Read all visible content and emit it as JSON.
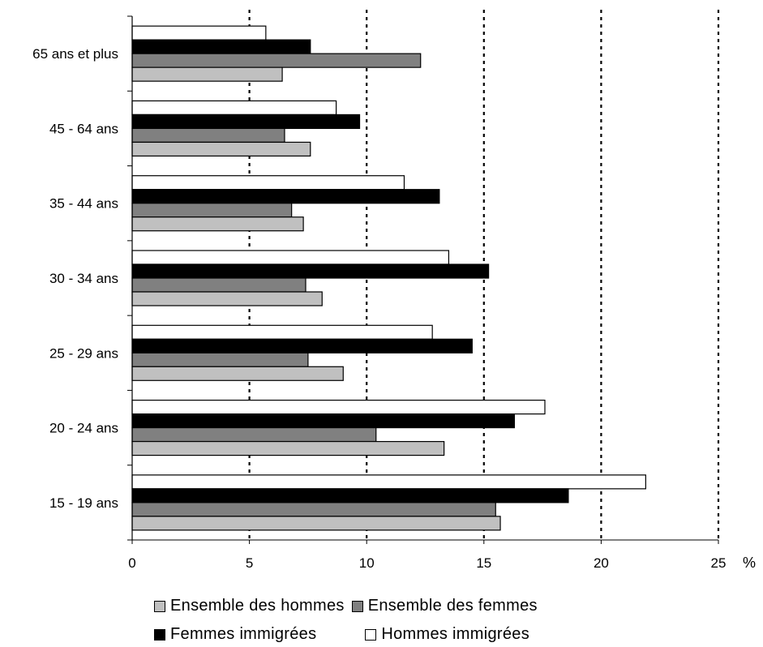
{
  "chart_data": {
    "type": "bar",
    "orientation": "horizontal",
    "categories": [
      "65 ans et plus",
      "45 - 64 ans",
      "35 - 44 ans",
      "30 - 34 ans",
      "25 - 29 ans",
      "20 - 24 ans",
      "15 - 19 ans"
    ],
    "series": [
      {
        "name": "Hommes immigrées",
        "color": "#ffffff",
        "values": [
          5.7,
          8.7,
          11.6,
          13.5,
          12.8,
          17.6,
          21.9
        ]
      },
      {
        "name": "Femmes immigrées",
        "color": "#000000",
        "values": [
          7.6,
          9.7,
          13.1,
          15.2,
          14.5,
          16.3,
          18.6
        ]
      },
      {
        "name": "Ensemble des femmes",
        "color": "#808080",
        "values": [
          12.3,
          6.5,
          6.8,
          7.4,
          7.5,
          10.4,
          15.5
        ]
      },
      {
        "name": "Ensemble des hommes",
        "color": "#c0c0c0",
        "values": [
          6.4,
          7.6,
          7.3,
          8.1,
          9.0,
          13.3,
          15.7
        ]
      }
    ],
    "x_ticks": [
      0,
      5,
      10,
      15,
      20,
      25
    ],
    "xlim": [
      0,
      25
    ],
    "unit_label": "%",
    "gridlines": "dotted vertical",
    "legend": [
      [
        "Ensemble des hommes",
        "Ensemble des femmes"
      ],
      [
        "Femmes immigrées",
        "Hommes immigrées"
      ]
    ],
    "legend_placement": "bottom"
  }
}
